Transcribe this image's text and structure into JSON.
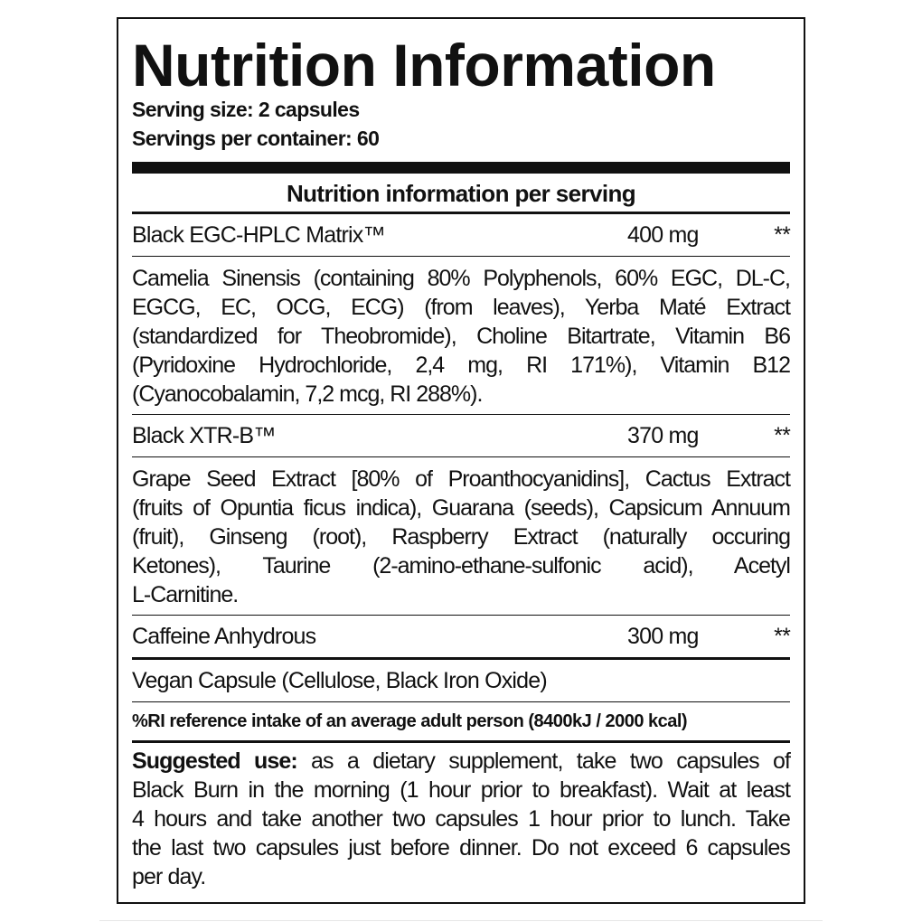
{
  "title": "Nutrition Information",
  "serving_size": "Serving size: 2 capsules",
  "servings_per_container": "Servings per container: 60",
  "section_heading": "Nutrition information per serving",
  "items": [
    {
      "name": "Black EGC-HPLC Matrix™",
      "amount": "400 mg",
      "mark": "**",
      "lines": [
        "Camelia Sinensis (containing 80% Polyphenols, 60% EGC, DL-C,",
        "EGCG, EC, OCG, ECG) (from leaves), Yerba Maté Extract",
        "(standardized for Theobromide), Choline Bitartrate, Vitamin B6",
        "(Pyridoxine Hydrochloride, 2,4 mg, RI 171%), Vitamin B12",
        "(Cyanocobalamin, 7,2 mcg, RI 288%)."
      ]
    },
    {
      "name": "Black XTR-B™",
      "amount": "370 mg",
      "mark": "**",
      "lines": [
        "Grape Seed Extract [80% of Proanthocyanidins], Cactus Extract",
        "(fruits of Opuntia ficus indica), Guarana (seeds), Capsicum Annuum",
        "(fruit), Ginseng (root), Raspberry Extract (naturally occuring",
        "Ketones), Taurine (2-amino-ethane-sulfonic acid), Acetyl",
        "L-Carnitine."
      ]
    },
    {
      "name": "Caffeine Anhydrous",
      "amount": "300 mg",
      "mark": "**"
    }
  ],
  "capsule": "Vegan Capsule (Cellulose, Black Iron Oxide)",
  "ri_note": "%RI reference intake of an average adult person (8400kJ / 2000 kcal)",
  "suggested_use": {
    "label": "Suggested use:",
    "lines": [
      " as a dietary supplement, take two capsules of",
      "Black Burn in the morning (1 hour prior to breakfast). Wait at least",
      "4 hours and take another two capsules 1 hour prior to lunch. Take",
      "the last two capsules just before dinner. Do not exceed 6 capsules",
      "per day."
    ]
  }
}
